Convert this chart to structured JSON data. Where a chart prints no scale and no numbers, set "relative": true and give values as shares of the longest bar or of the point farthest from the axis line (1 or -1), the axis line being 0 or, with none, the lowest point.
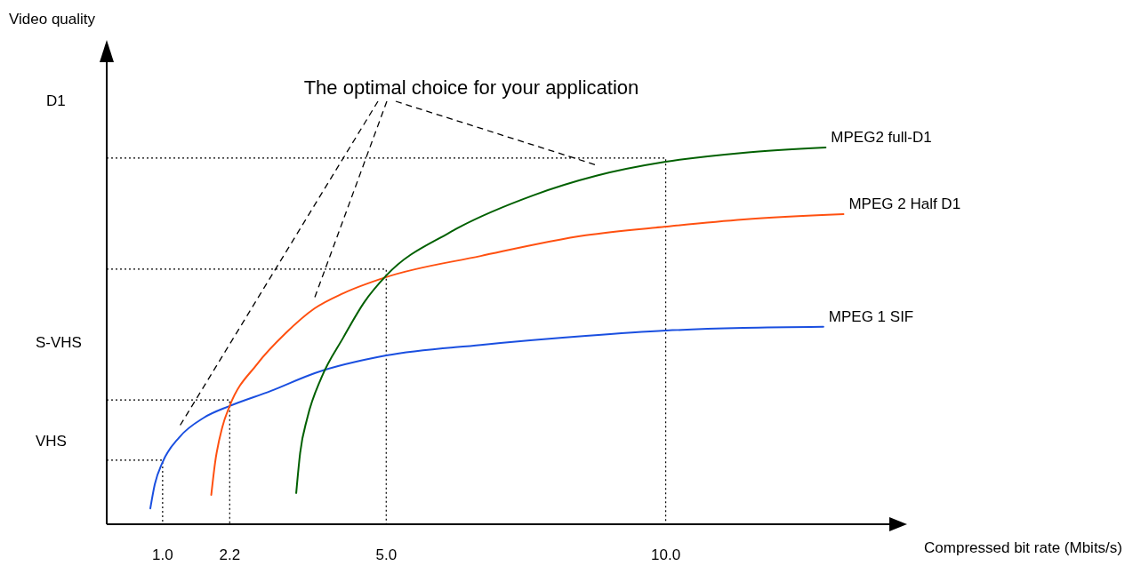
{
  "chart_data": {
    "type": "line",
    "relative": true,
    "xlabel": "Compressed bit rate (Mbits/s)",
    "xlim": [
      0,
      14
    ],
    "xticks": [
      {
        "value": 1,
        "label": "1.0"
      },
      {
        "value": 2.2,
        "label": "2.2"
      },
      {
        "value": 5,
        "label": "5.0"
      },
      {
        "value": 10,
        "label": "10.0"
      }
    ],
    "series": [
      {
        "name": "MPEG 1 SIF",
        "color": "#1a4fe0",
        "x": [
          0.78,
          0.86,
          1.0,
          1.3,
          1.74,
          2.2,
          2.94,
          3.72,
          5.0,
          6.69,
          8.57,
          10,
          11.39,
          12.82
        ],
        "values": [
          0.042,
          0.106,
          0.165,
          0.231,
          0.283,
          0.314,
          0.354,
          0.401,
          0.448,
          0.476,
          0.5,
          0.514,
          0.521,
          0.524
        ]
      },
      {
        "name": "MPEG 2 Half D1",
        "color": "#ff5010",
        "x": [
          1.87,
          1.94,
          2.07,
          2.2,
          2.69,
          3.2,
          3.72,
          4.23,
          5,
          6.69,
          8.57,
          10,
          11.39,
          13.18
        ],
        "values": [
          0.078,
          0.165,
          0.259,
          0.314,
          0.425,
          0.507,
          0.573,
          0.613,
          0.656,
          0.712,
          0.767,
          0.79,
          0.809,
          0.823
        ]
      },
      {
        "name": "MPEG2 full-D1",
        "color": "#006000",
        "x": [
          3.39,
          3.46,
          3.59,
          3.84,
          4.23,
          4.61,
          5,
          6.13,
          7.63,
          8.76,
          10,
          11.39,
          12.86
        ],
        "values": [
          0.083,
          0.189,
          0.283,
          0.389,
          0.495,
          0.59,
          0.66,
          0.774,
          0.873,
          0.925,
          0.962,
          0.986,
          1.0
        ]
      },
      {
        "type": "line",
        "color": "#000000",
        "line_style": "dotted",
        "x": [
          0,
          1,
          1
        ],
        "values": [
          0.17,
          0.17,
          0
        ]
      },
      {
        "type": "line",
        "color": "#000000",
        "line_style": "dotted",
        "x": [
          0,
          2.2,
          2.2
        ],
        "values": [
          0.33,
          0.33,
          0
        ]
      },
      {
        "type": "line",
        "color": "#000000",
        "line_style": "dotted",
        "x": [
          0,
          5,
          5
        ],
        "values": [
          0.677,
          0.677,
          0
        ]
      },
      {
        "type": "line",
        "color": "#000000",
        "line_style": "dotted",
        "x": [
          0,
          10,
          10
        ],
        "values": [
          0.972,
          0.972,
          0
        ]
      }
    ],
    "annotations": [
      "Video quality",
      "D1",
      "S-VHS",
      "VHS",
      "The optimal choice for your application"
    ]
  }
}
